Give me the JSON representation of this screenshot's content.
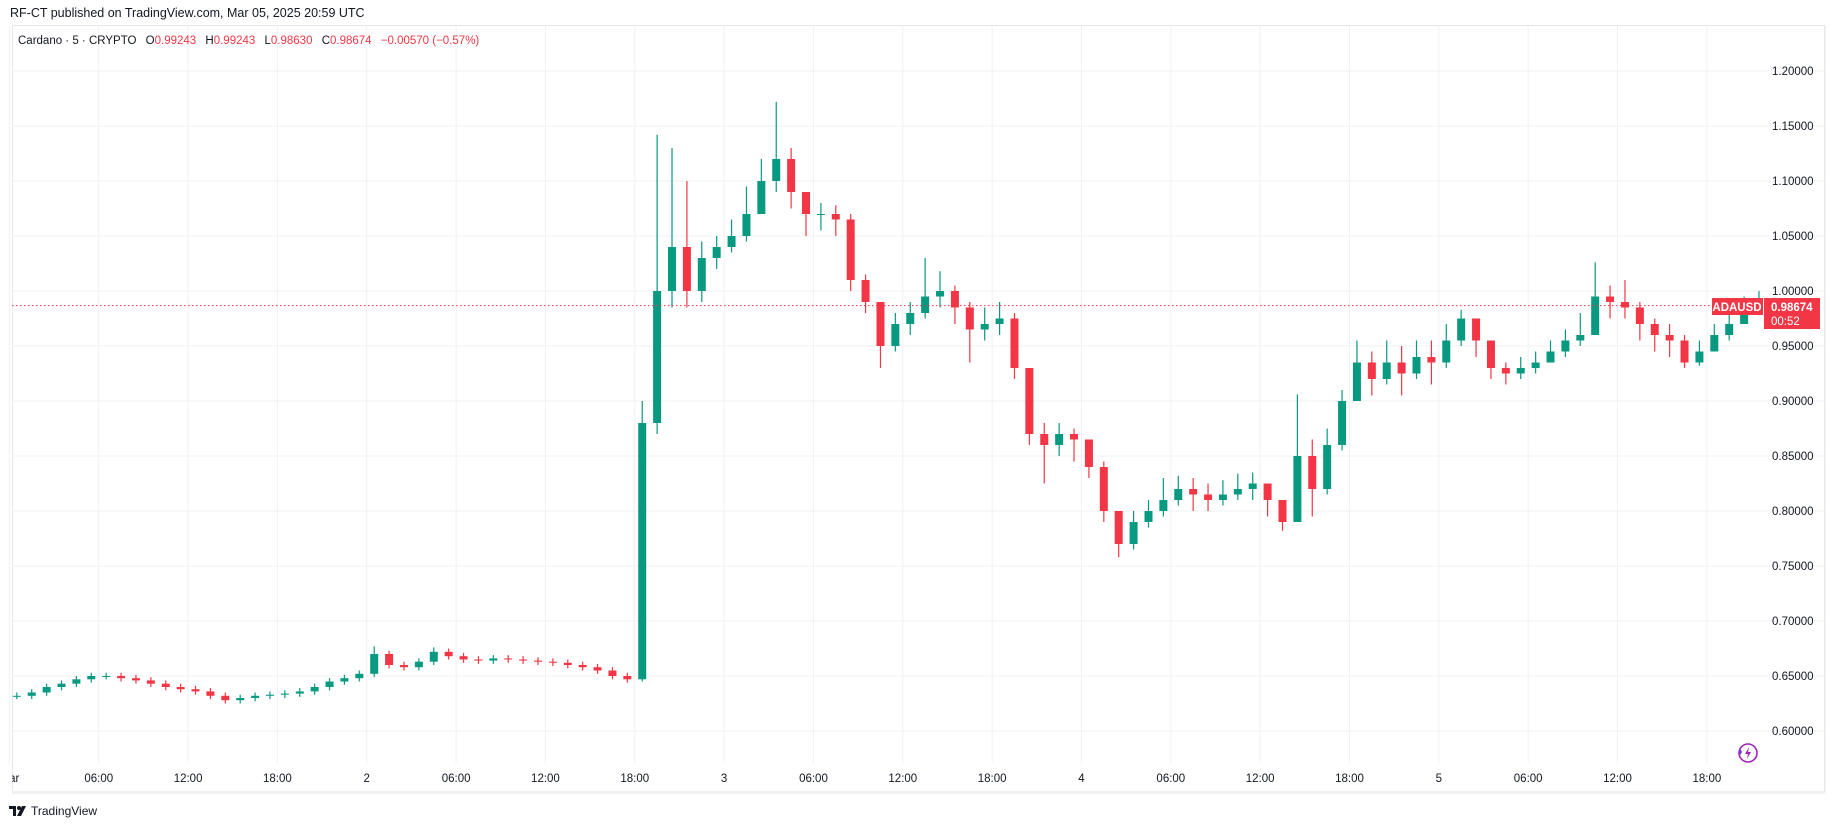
{
  "header": {
    "published": "RF-CT published on TradingView.com, Mar 05, 2025 20:59 UTC"
  },
  "legend": {
    "symbol": "Cardano · 5 · CRYPTO",
    "o_label": "O",
    "o": "0.99243",
    "h_label": "H",
    "h": "0.99243",
    "l_label": "L",
    "l": "0.98630",
    "c_label": "C",
    "c": "0.98674",
    "change": "−0.00570 (−0.57%)"
  },
  "price_label": {
    "ticker": "ADAUSD",
    "price": "0.98674",
    "countdown": "00:52"
  },
  "footer": {
    "brand": "TradingView"
  },
  "colors": {
    "up": "#089981",
    "down": "#f23645",
    "grid": "#f0f1f3",
    "last_price": "#f23645",
    "icon": "#9c27b0"
  },
  "icons": {
    "logo": "tradingview-logo",
    "corner": "lightning-icon"
  },
  "chart_data": {
    "type": "candlestick",
    "title": "Cardano · 5 · CRYPTO",
    "symbol": "ADAUSD",
    "ylim": [
      0.575,
      1.235
    ],
    "y_ticks": [
      "0.60000",
      "0.65000",
      "0.70000",
      "0.75000",
      "0.80000",
      "0.85000",
      "0.90000",
      "0.95000",
      "1.00000",
      "1.05000",
      "1.10000",
      "1.15000",
      "1.20000"
    ],
    "x_ticks": [
      {
        "label": "Mar",
        "t": "2025-03-01T00:00"
      },
      {
        "label": "06:00",
        "t": "2025-03-01T06:00"
      },
      {
        "label": "12:00",
        "t": "2025-03-01T12:00"
      },
      {
        "label": "18:00",
        "t": "2025-03-01T18:00"
      },
      {
        "label": "2",
        "t": "2025-03-02T00:00"
      },
      {
        "label": "06:00",
        "t": "2025-03-02T06:00"
      },
      {
        "label": "12:00",
        "t": "2025-03-02T12:00"
      },
      {
        "label": "18:00",
        "t": "2025-03-02T18:00"
      },
      {
        "label": "3",
        "t": "2025-03-03T00:00"
      },
      {
        "label": "06:00",
        "t": "2025-03-03T06:00"
      },
      {
        "label": "12:00",
        "t": "2025-03-03T12:00"
      },
      {
        "label": "18:00",
        "t": "2025-03-03T18:00"
      },
      {
        "label": "4",
        "t": "2025-03-04T00:00"
      },
      {
        "label": "06:00",
        "t": "2025-03-04T06:00"
      },
      {
        "label": "12:00",
        "t": "2025-03-04T12:00"
      },
      {
        "label": "18:00",
        "t": "2025-03-04T18:00"
      },
      {
        "label": "5",
        "t": "2025-03-05T00:00"
      },
      {
        "label": "06:00",
        "t": "2025-03-05T06:00"
      },
      {
        "label": "12:00",
        "t": "2025-03-05T12:00"
      },
      {
        "label": "18:00",
        "t": "2025-03-05T18:00"
      }
    ],
    "grid": true,
    "last_price": 0.98674,
    "candles_start": "2025-03-01T00:00",
    "candle_step_hours": 1,
    "candles": [
      {
        "c": 0.632
      },
      {
        "c": 0.635
      },
      {
        "c": 0.64
      },
      {
        "c": 0.643
      },
      {
        "c": 0.647
      },
      {
        "c": 0.65
      },
      {
        "c": 0.65
      },
      {
        "c": 0.648
      },
      {
        "c": 0.646
      },
      {
        "c": 0.643
      },
      {
        "c": 0.64
      },
      {
        "c": 0.638
      },
      {
        "c": 0.636
      },
      {
        "c": 0.632
      },
      {
        "c": 0.628,
        "l": 0.625
      },
      {
        "c": 0.63
      },
      {
        "c": 0.632
      },
      {
        "c": 0.633
      },
      {
        "c": 0.634
      },
      {
        "c": 0.636
      },
      {
        "c": 0.64
      },
      {
        "c": 0.645
      },
      {
        "c": 0.648
      },
      {
        "c": 0.652
      },
      {
        "c": 0.67,
        "h": 0.677
      },
      {
        "c": 0.66
      },
      {
        "c": 0.658
      },
      {
        "c": 0.663
      },
      {
        "c": 0.672,
        "h": 0.676
      },
      {
        "c": 0.668
      },
      {
        "c": 0.665
      },
      {
        "c": 0.664
      },
      {
        "c": 0.666
      },
      {
        "c": 0.665
      },
      {
        "c": 0.664
      },
      {
        "c": 0.663
      },
      {
        "c": 0.662
      },
      {
        "c": 0.66
      },
      {
        "c": 0.658
      },
      {
        "c": 0.655
      },
      {
        "c": 0.65
      },
      {
        "c": 0.647,
        "l": 0.644
      },
      {
        "c": 0.88,
        "h": 0.9,
        "l": 0.645
      },
      {
        "c": 1.0,
        "h": 1.142,
        "l": 0.87
      },
      {
        "c": 1.04,
        "h": 1.13,
        "l": 0.985
      },
      {
        "c": 1.0,
        "h": 1.1,
        "l": 0.985
      },
      {
        "c": 1.03,
        "h": 1.045,
        "l": 0.99
      },
      {
        "c": 1.04,
        "h": 1.05,
        "l": 1.02
      },
      {
        "c": 1.05,
        "h": 1.065,
        "l": 1.035
      },
      {
        "c": 1.07,
        "h": 1.095,
        "l": 1.045
      },
      {
        "c": 1.1,
        "h": 1.12,
        "l": 1.07
      },
      {
        "c": 1.12,
        "h": 1.172,
        "l": 1.09
      },
      {
        "c": 1.09,
        "h": 1.13,
        "l": 1.075
      },
      {
        "c": 1.07,
        "h": 1.09,
        "l": 1.05
      },
      {
        "c": 1.07,
        "h": 1.08,
        "l": 1.055
      },
      {
        "c": 1.065,
        "h": 1.078,
        "l": 1.05
      },
      {
        "c": 1.01,
        "h": 1.07,
        "l": 1.0
      },
      {
        "c": 0.99,
        "h": 1.015,
        "l": 0.98
      },
      {
        "c": 0.95,
        "h": 0.99,
        "l": 0.93
      },
      {
        "c": 0.97,
        "h": 0.98,
        "l": 0.945
      },
      {
        "c": 0.98,
        "h": 0.99,
        "l": 0.96
      },
      {
        "c": 0.995,
        "h": 1.03,
        "l": 0.975
      },
      {
        "c": 1.0,
        "h": 1.018,
        "l": 0.985
      },
      {
        "c": 0.985,
        "h": 1.005,
        "l": 0.97
      },
      {
        "c": 0.965,
        "h": 0.99,
        "l": 0.935
      },
      {
        "c": 0.97,
        "h": 0.985,
        "l": 0.955
      },
      {
        "c": 0.975,
        "h": 0.99,
        "l": 0.96
      },
      {
        "c": 0.93,
        "h": 0.98,
        "l": 0.92
      },
      {
        "c": 0.87,
        "h": 0.93,
        "l": 0.86
      },
      {
        "c": 0.86,
        "h": 0.88,
        "l": 0.825
      },
      {
        "c": 0.87,
        "h": 0.88,
        "l": 0.85
      },
      {
        "c": 0.865,
        "h": 0.875,
        "l": 0.845
      },
      {
        "c": 0.84,
        "h": 0.865,
        "l": 0.83
      },
      {
        "c": 0.8,
        "h": 0.845,
        "l": 0.79
      },
      {
        "c": 0.77,
        "h": 0.8,
        "l": 0.758
      },
      {
        "c": 0.79,
        "h": 0.8,
        "l": 0.765
      },
      {
        "c": 0.8,
        "h": 0.81,
        "l": 0.785
      },
      {
        "c": 0.81,
        "h": 0.83,
        "l": 0.795
      },
      {
        "c": 0.82,
        "h": 0.832,
        "l": 0.805
      },
      {
        "c": 0.815,
        "h": 0.83,
        "l": 0.8
      },
      {
        "c": 0.81,
        "h": 0.825,
        "l": 0.8
      },
      {
        "c": 0.815,
        "h": 0.828,
        "l": 0.805
      },
      {
        "c": 0.82,
        "h": 0.834,
        "l": 0.81
      },
      {
        "c": 0.825,
        "h": 0.835,
        "l": 0.81
      },
      {
        "c": 0.81,
        "h": 0.82,
        "l": 0.795
      },
      {
        "c": 0.79,
        "h": 0.81,
        "l": 0.782
      },
      {
        "c": 0.85,
        "h": 0.906,
        "l": 0.79
      },
      {
        "c": 0.82,
        "h": 0.865,
        "l": 0.795
      },
      {
        "c": 0.86,
        "h": 0.875,
        "l": 0.815
      },
      {
        "c": 0.9,
        "h": 0.91,
        "l": 0.855
      },
      {
        "c": 0.935,
        "h": 0.955,
        "l": 0.9
      },
      {
        "c": 0.92,
        "h": 0.945,
        "l": 0.905
      },
      {
        "c": 0.935,
        "h": 0.955,
        "l": 0.915
      },
      {
        "c": 0.925,
        "h": 0.95,
        "l": 0.905
      },
      {
        "c": 0.94,
        "h": 0.955,
        "l": 0.92
      },
      {
        "c": 0.935,
        "h": 0.955,
        "l": 0.915
      },
      {
        "c": 0.955,
        "h": 0.97,
        "l": 0.93
      },
      {
        "c": 0.975,
        "h": 0.983,
        "l": 0.95
      },
      {
        "c": 0.955,
        "h": 0.975,
        "l": 0.94
      },
      {
        "c": 0.93,
        "h": 0.955,
        "l": 0.92
      },
      {
        "c": 0.925,
        "h": 0.935,
        "l": 0.915
      },
      {
        "c": 0.93,
        "h": 0.94,
        "l": 0.92
      },
      {
        "c": 0.935,
        "h": 0.945,
        "l": 0.925
      },
      {
        "c": 0.945,
        "h": 0.955,
        "l": 0.935
      },
      {
        "c": 0.955,
        "h": 0.965,
        "l": 0.94
      },
      {
        "c": 0.96,
        "h": 0.98,
        "l": 0.95
      },
      {
        "c": 0.995,
        "h": 1.026,
        "l": 0.96
      },
      {
        "c": 0.99,
        "h": 1.005,
        "l": 0.975
      },
      {
        "c": 0.985,
        "h": 1.01,
        "l": 0.975
      },
      {
        "c": 0.97,
        "h": 0.99,
        "l": 0.955
      },
      {
        "c": 0.96,
        "h": 0.975,
        "l": 0.945
      },
      {
        "c": 0.955,
        "h": 0.97,
        "l": 0.94
      },
      {
        "c": 0.935,
        "h": 0.96,
        "l": 0.93
      },
      {
        "c": 0.945,
        "h": 0.955,
        "l": 0.932
      },
      {
        "c": 0.96,
        "h": 0.97,
        "l": 0.945
      },
      {
        "c": 0.97,
        "h": 0.98,
        "l": 0.955
      },
      {
        "c": 0.985,
        "h": 0.995,
        "l": 0.97
      },
      {
        "c": 0.98674,
        "h": 1.0,
        "l": 0.978
      }
    ]
  }
}
